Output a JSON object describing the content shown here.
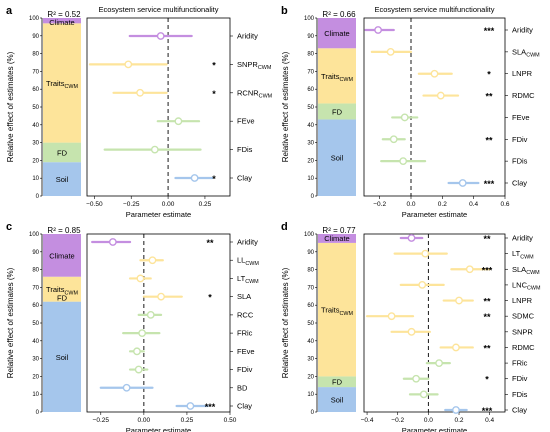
{
  "colors": {
    "Climate": "#c48ee0",
    "Traits": "#fde49a",
    "FD": "#c6e4ae",
    "Soil": "#a5c6ec",
    "axis": "#000000"
  },
  "common": {
    "stack_ylabel": "Relative effect of estimates (%)",
    "forest_xlabel": "Parameter estimate",
    "stack_ticks": [
      "0",
      "10",
      "20",
      "30",
      "40",
      "50",
      "60",
      "70",
      "80",
      "90",
      "100"
    ]
  },
  "chart_data": [
    {
      "type": "stacked-bar-and-forest",
      "panel": "a",
      "title": "Ecosystem service multifunctionality",
      "r2": "R² = 0.52",
      "stack": [
        {
          "name": "Soil",
          "label": "Soil",
          "value": 19
        },
        {
          "name": "FD",
          "label": "FD",
          "value": 11
        },
        {
          "name": "Traits",
          "label": "Traits",
          "sub": "CWM",
          "value": 67
        },
        {
          "name": "Climate",
          "label": "Climate",
          "value": 3
        }
      ],
      "xlim": [
        -0.55,
        0.42
      ],
      "xticks": [
        -0.5,
        -0.25,
        0,
        0.25
      ],
      "xticklabels": [
        "−0.50",
        "−0.25",
        "0.00",
        "0.25"
      ],
      "rows": [
        {
          "label": "Aridity",
          "sub": "",
          "group": "Climate",
          "est": -0.05,
          "lo": -0.26,
          "hi": 0.16,
          "sig": ""
        },
        {
          "label": "SNPR",
          "sub": "CWM",
          "group": "Traits",
          "est": -0.27,
          "lo": -0.53,
          "hi": -0.01,
          "sig": "*"
        },
        {
          "label": "RCNR",
          "sub": "CWM",
          "group": "Traits",
          "est": -0.19,
          "lo": -0.37,
          "hi": -0.01,
          "sig": "*"
        },
        {
          "label": "FEve",
          "sub": "",
          "group": "FD",
          "est": 0.07,
          "lo": -0.07,
          "hi": 0.21,
          "sig": ""
        },
        {
          "label": "FDis",
          "sub": "",
          "group": "FD",
          "est": -0.09,
          "lo": -0.43,
          "hi": 0.22,
          "sig": ""
        },
        {
          "label": "Clay",
          "sub": "",
          "group": "Soil",
          "est": 0.18,
          "lo": 0.05,
          "hi": 0.3,
          "sig": "*"
        }
      ]
    },
    {
      "type": "stacked-bar-and-forest",
      "panel": "b",
      "title": "Ecosystem service multifunctionality",
      "r2": "R² = 0.66",
      "stack": [
        {
          "name": "Soil",
          "label": "Soil",
          "value": 43
        },
        {
          "name": "FD",
          "label": "FD",
          "value": 9
        },
        {
          "name": "Traits",
          "label": "Traits",
          "sub": "CWM",
          "value": 31
        },
        {
          "name": "Climate",
          "label": "Climate",
          "value": 17
        }
      ],
      "xlim": [
        -0.3,
        0.6
      ],
      "xticks": [
        -0.2,
        0,
        0.2,
        0.4,
        0.6
      ],
      "xticklabels": [
        "−0.2",
        "0.0",
        "0.2",
        "0.4",
        "0.6"
      ],
      "rows": [
        {
          "label": "Aridity",
          "sub": "",
          "group": "Climate",
          "est": -0.21,
          "lo": -0.29,
          "hi": -0.11,
          "sig": "***"
        },
        {
          "label": "SLA",
          "sub": "CWM",
          "group": "Traits",
          "est": -0.13,
          "lo": -0.25,
          "hi": 0.0,
          "sig": ""
        },
        {
          "label": "LNPR",
          "sub": "",
          "group": "Traits",
          "est": 0.15,
          "lo": 0.05,
          "hi": 0.26,
          "sig": "*"
        },
        {
          "label": "RDMC",
          "sub": "",
          "group": "Traits",
          "est": 0.19,
          "lo": 0.08,
          "hi": 0.3,
          "sig": "**"
        },
        {
          "label": "FEve",
          "sub": "",
          "group": "FD",
          "est": -0.04,
          "lo": -0.12,
          "hi": 0.04,
          "sig": ""
        },
        {
          "label": "FDiv",
          "sub": "",
          "group": "FD",
          "est": -0.11,
          "lo": -0.18,
          "hi": -0.04,
          "sig": "**"
        },
        {
          "label": "FDis",
          "sub": "",
          "group": "FD",
          "est": -0.05,
          "lo": -0.19,
          "hi": 0.09,
          "sig": ""
        },
        {
          "label": "Clay",
          "sub": "",
          "group": "Soil",
          "est": 0.33,
          "lo": 0.24,
          "hi": 0.43,
          "sig": "***"
        }
      ]
    },
    {
      "type": "stacked-bar-and-forest",
      "panel": "c",
      "title": "",
      "r2": "R² = 0.85",
      "stack": [
        {
          "name": "Soil",
          "label": "Soil",
          "value": 62
        },
        {
          "name": "FD",
          "label": "FD",
          "value": 0
        },
        {
          "name": "Traits",
          "label": "Traits",
          "sub": "CWM",
          "value": 14
        },
        {
          "name": "Climate",
          "label": "Climate",
          "value": 24
        }
      ],
      "xlim": [
        -0.33,
        0.5
      ],
      "xticks": [
        -0.25,
        0,
        0.25,
        0.5
      ],
      "xticklabels": [
        "−0.25",
        "0.00",
        "0.25",
        "0.50"
      ],
      "rows": [
        {
          "label": "Aridity",
          "sub": "",
          "group": "Climate",
          "est": -0.18,
          "lo": -0.3,
          "hi": -0.08,
          "sig": "**"
        },
        {
          "label": "LL",
          "sub": "CWM",
          "group": "Traits",
          "est": 0.05,
          "lo": -0.02,
          "hi": 0.11,
          "sig": ""
        },
        {
          "label": "LT",
          "sub": "CWM",
          "group": "Traits",
          "est": -0.02,
          "lo": -0.08,
          "hi": 0.04,
          "sig": ""
        },
        {
          "label": "SLA",
          "sub": "",
          "group": "Traits",
          "est": 0.1,
          "lo": 0.0,
          "hi": 0.22,
          "sig": "*"
        },
        {
          "label": "RCC",
          "sub": "",
          "group": "FD",
          "est": 0.04,
          "lo": -0.03,
          "hi": 0.1,
          "sig": ""
        },
        {
          "label": "FRic",
          "sub": "",
          "group": "FD",
          "est": -0.01,
          "lo": -0.12,
          "hi": 0.09,
          "sig": ""
        },
        {
          "label": "FEve",
          "sub": "",
          "group": "FD",
          "est": -0.04,
          "lo": -0.08,
          "hi": 0.0,
          "sig": ""
        },
        {
          "label": "FDiv",
          "sub": "",
          "group": "FD",
          "est": -0.03,
          "lo": -0.08,
          "hi": 0.02,
          "sig": ""
        },
        {
          "label": "BD",
          "sub": "",
          "group": "Soil",
          "est": -0.1,
          "lo": -0.25,
          "hi": 0.05,
          "sig": ""
        },
        {
          "label": "Clay",
          "sub": "",
          "group": "Soil",
          "est": 0.27,
          "lo": 0.19,
          "hi": 0.37,
          "sig": "***"
        }
      ]
    },
    {
      "type": "stacked-bar-and-forest",
      "panel": "d",
      "title": "",
      "r2": "R² = 0.77",
      "stack": [
        {
          "name": "Soil",
          "label": "Soil",
          "value": 14
        },
        {
          "name": "FD",
          "label": "FD",
          "value": 6
        },
        {
          "name": "Traits",
          "label": "Traits",
          "sub": "CWM",
          "value": 75
        },
        {
          "name": "Climate",
          "label": "Climate",
          "value": 5
        }
      ],
      "xlim": [
        -0.42,
        0.5
      ],
      "xticks": [
        -0.4,
        -0.2,
        0,
        0.2,
        0.4
      ],
      "xticklabels": [
        "−0.4",
        "−0.2",
        "0.0",
        "0.2",
        "0.4"
      ],
      "rows": [
        {
          "label": "Aridity",
          "sub": "",
          "group": "Climate",
          "est": -0.11,
          "lo": -0.18,
          "hi": -0.04,
          "sig": "**"
        },
        {
          "label": "LT",
          "sub": "CWM",
          "group": "Traits",
          "est": -0.02,
          "lo": -0.22,
          "hi": 0.12,
          "sig": ""
        },
        {
          "label": "SLA",
          "sub": "CWM",
          "group": "Traits",
          "est": 0.27,
          "lo": 0.15,
          "hi": 0.4,
          "sig": "***"
        },
        {
          "label": "LNC",
          "sub": "CWM",
          "group": "Traits",
          "est": -0.04,
          "lo": -0.18,
          "hi": 0.1,
          "sig": ""
        },
        {
          "label": "LNPR",
          "sub": "",
          "group": "Traits",
          "est": 0.2,
          "lo": 0.1,
          "hi": 0.29,
          "sig": "**"
        },
        {
          "label": "SDMC",
          "sub": "",
          "group": "Traits",
          "est": -0.24,
          "lo": -0.4,
          "hi": -0.1,
          "sig": "**"
        },
        {
          "label": "SNPR",
          "sub": "",
          "group": "Traits",
          "est": -0.11,
          "lo": -0.24,
          "hi": 0.01,
          "sig": ""
        },
        {
          "label": "RDMC",
          "sub": "",
          "group": "Traits",
          "est": 0.18,
          "lo": 0.08,
          "hi": 0.29,
          "sig": "**"
        },
        {
          "label": "FRic",
          "sub": "",
          "group": "FD",
          "est": 0.07,
          "lo": -0.01,
          "hi": 0.14,
          "sig": ""
        },
        {
          "label": "FDiv",
          "sub": "",
          "group": "FD",
          "est": -0.08,
          "lo": -0.16,
          "hi": 0.0,
          "sig": "*"
        },
        {
          "label": "FDis",
          "sub": "",
          "group": "FD",
          "est": -0.03,
          "lo": -0.12,
          "hi": 0.06,
          "sig": ""
        },
        {
          "label": "Clay",
          "sub": "",
          "group": "Soil",
          "est": 0.18,
          "lo": 0.11,
          "hi": 0.25,
          "sig": "***"
        }
      ]
    }
  ]
}
